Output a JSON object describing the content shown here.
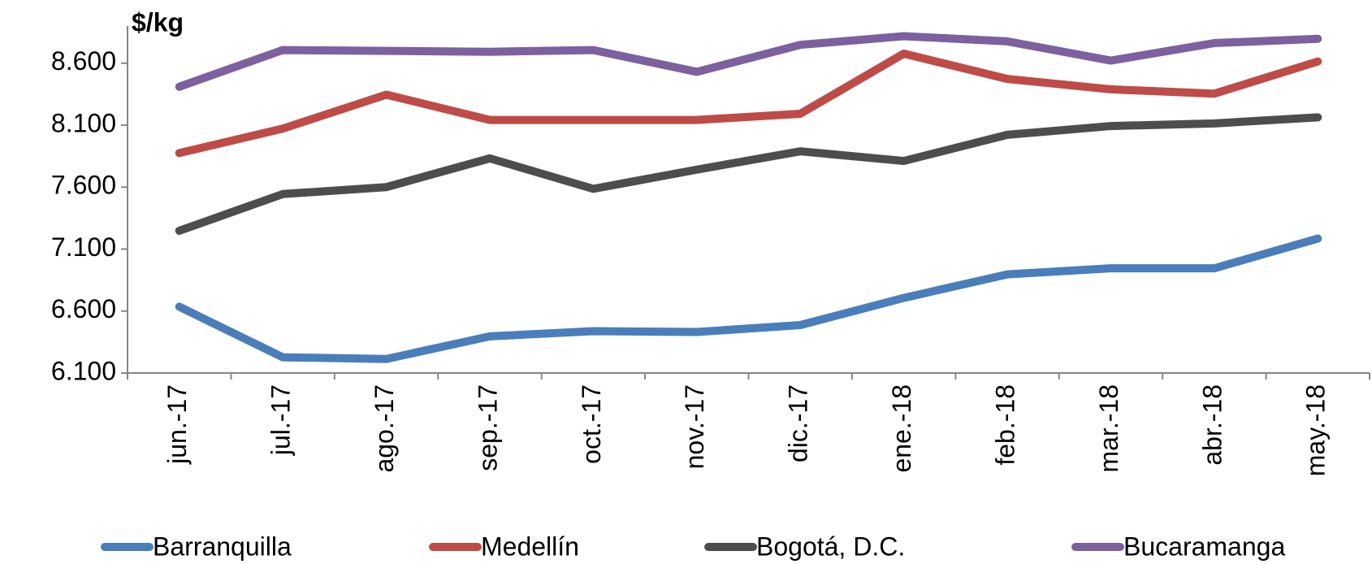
{
  "chart_data": {
    "type": "line",
    "y_label": "$/kg",
    "categories": [
      "jun.-17",
      "jul.-17",
      "ago.-17",
      "sep.-17",
      "oct.-17",
      "nov.-17",
      "dic.-17",
      "ene.-18",
      "feb.-18",
      "mar.-18",
      "abr.-18",
      "may.-18"
    ],
    "series": [
      {
        "name": "Barranquilla",
        "color": "#4a7ebb",
        "values": [
          6635,
          6227,
          6213,
          6396,
          6438,
          6431,
          6487,
          6706,
          6896,
          6945,
          6945,
          7185
        ]
      },
      {
        "name": "Medellín",
        "color": "#be4b48",
        "values": [
          7875,
          8072,
          8346,
          8142,
          8142,
          8142,
          8192,
          8677,
          8473,
          8389,
          8354,
          8614
        ]
      },
      {
        "name": "Bogotá, D.C.",
        "color": "#4d4d4d",
        "values": [
          7248,
          7544,
          7600,
          7832,
          7586,
          7741,
          7889,
          7811,
          8022,
          8093,
          8114,
          8163
        ]
      },
      {
        "name": "Bucaramanga",
        "color": "#7d60a0",
        "values": [
          8410,
          8706,
          8699,
          8692,
          8706,
          8530,
          8748,
          8818,
          8776,
          8621,
          8762,
          8797
        ]
      }
    ],
    "ylim": [
      6100,
      8900
    ],
    "yticks": [
      {
        "value": 6100,
        "label": "6.100"
      },
      {
        "value": 6600,
        "label": "6.600"
      },
      {
        "value": 7100,
        "label": "7.100"
      },
      {
        "value": 7600,
        "label": "7.600"
      },
      {
        "value": 8100,
        "label": "8.100"
      },
      {
        "value": 8600,
        "label": "8.600"
      }
    ],
    "grid": false
  }
}
